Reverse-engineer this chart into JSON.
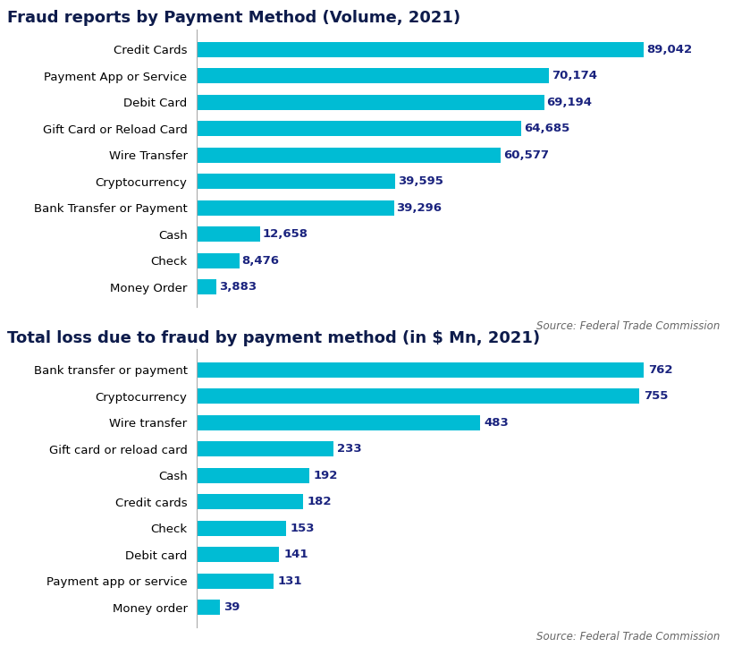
{
  "chart1": {
    "title": "Fraud reports by Payment Method (Volume, 2021)",
    "categories": [
      "Credit Cards",
      "Payment App or Service",
      "Debit Card",
      "Gift Card or Reload Card",
      "Wire Transfer",
      "Cryptocurrency",
      "Bank Transfer or Payment",
      "Cash",
      "Check",
      "Money Order"
    ],
    "values": [
      89042,
      70174,
      69194,
      64685,
      60577,
      39595,
      39296,
      12658,
      8476,
      3883
    ],
    "bar_color": "#00BCD4",
    "value_color": "#1a237e",
    "source": "Source: Federal Trade Commission"
  },
  "chart2": {
    "title": "Total loss due to fraud by payment method (in $ Mn, 2021)",
    "categories": [
      "Bank transfer or payment",
      "Cryptocurrency",
      "Wire transfer",
      "Gift card or reload card",
      "Cash",
      "Credit cards",
      "Check",
      "Debit card",
      "Payment app or service",
      "Money order"
    ],
    "values": [
      762,
      755,
      483,
      233,
      192,
      182,
      153,
      141,
      131,
      39
    ],
    "bar_color": "#00BCD4",
    "value_color": "#1a237e",
    "source": "Source: Federal Trade Commission"
  },
  "background_color": "#ffffff",
  "title_fontsize": 13,
  "label_fontsize": 9.5,
  "value_fontsize": 9.5,
  "source_fontsize": 8.5,
  "title_color": "#0d1b4b",
  "label_color": "#000000"
}
